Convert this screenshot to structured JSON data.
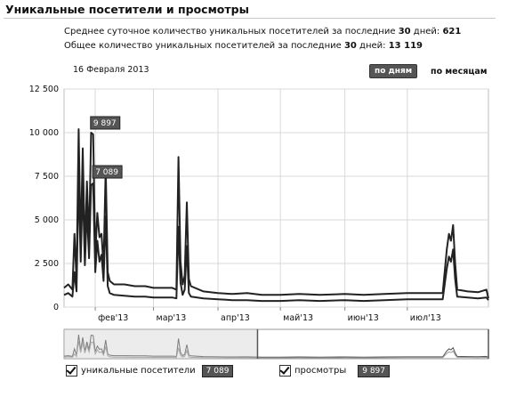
{
  "page": {
    "title": "Уникальные посетители и просмотры",
    "stats": [
      {
        "label": "Среднее суточное количество уникальных посетителей за последние",
        "days": "30",
        "suffix": " дней:",
        "value": "621"
      },
      {
        "label": "Общее количество уникальных посетителей за последние",
        "days": "30",
        "suffix": " дней:",
        "value": "13 119"
      }
    ],
    "date": "16 Февраля 2013",
    "buttons": {
      "by_days": "по дням",
      "by_months": "по месяцам"
    },
    "legend": [
      {
        "label": "уникальные посетители",
        "value": "7 089"
      },
      {
        "label": "просмотры",
        "value": "9 897"
      }
    ]
  },
  "chart_data": {
    "type": "line",
    "x_start": "2013-01-17",
    "x_end": "2013-08-09",
    "ylim": [
      0,
      12500
    ],
    "yticks": [
      0,
      2500,
      5000,
      7500,
      10000,
      12500
    ],
    "ytick_labels": [
      "0",
      "2 500",
      "5 000",
      "7 500",
      "10 000",
      "12 500"
    ],
    "xtick_labels": [
      "фев'13",
      "мар'13",
      "апр'13",
      "май'13",
      "июн'13",
      "июл'13"
    ],
    "xtick_dates": [
      "2013-02-01",
      "2013-03-01",
      "2013-04-01",
      "2013-05-01",
      "2013-06-01",
      "2013-07-01"
    ],
    "grid": true,
    "annotations": [
      {
        "date": "2013-02-06",
        "value": 9897,
        "label": "9 897",
        "series": "просмотры"
      },
      {
        "date": "2013-02-07",
        "value": 7089,
        "label": "7 089",
        "series": "уникальные посетители"
      }
    ],
    "series": [
      {
        "name": "просмотры",
        "color": "#222222",
        "points": [
          [
            "2013-01-17",
            1100
          ],
          [
            "2013-01-19",
            1300
          ],
          [
            "2013-01-21",
            1000
          ],
          [
            "2013-01-22",
            4200
          ],
          [
            "2013-01-23",
            1600
          ],
          [
            "2013-01-24",
            10200
          ],
          [
            "2013-01-25",
            3500
          ],
          [
            "2013-01-26",
            9100
          ],
          [
            "2013-01-27",
            3200
          ],
          [
            "2013-01-28",
            7200
          ],
          [
            "2013-01-29",
            3800
          ],
          [
            "2013-01-30",
            10000
          ],
          [
            "2013-01-31",
            9900
          ],
          [
            "2013-02-01",
            3000
          ],
          [
            "2013-02-02",
            5400
          ],
          [
            "2013-02-03",
            4000
          ],
          [
            "2013-02-04",
            4200
          ],
          [
            "2013-02-05",
            2300
          ],
          [
            "2013-02-06",
            8000
          ],
          [
            "2013-02-07",
            2000
          ],
          [
            "2013-02-08",
            1500
          ],
          [
            "2013-02-10",
            1300
          ],
          [
            "2013-02-15",
            1300
          ],
          [
            "2013-02-20",
            1200
          ],
          [
            "2013-02-25",
            1200
          ],
          [
            "2013-03-01",
            1100
          ],
          [
            "2013-03-05",
            1100
          ],
          [
            "2013-03-10",
            1100
          ],
          [
            "2013-03-12",
            1000
          ],
          [
            "2013-03-13",
            8600
          ],
          [
            "2013-03-14",
            2600
          ],
          [
            "2013-03-15",
            1300
          ],
          [
            "2013-03-16",
            1800
          ],
          [
            "2013-03-17",
            6000
          ],
          [
            "2013-03-18",
            1600
          ],
          [
            "2013-03-19",
            1200
          ],
          [
            "2013-03-25",
            900
          ],
          [
            "2013-04-01",
            800
          ],
          [
            "2013-04-08",
            750
          ],
          [
            "2013-04-15",
            800
          ],
          [
            "2013-04-22",
            700
          ],
          [
            "2013-05-01",
            700
          ],
          [
            "2013-05-10",
            750
          ],
          [
            "2013-05-20",
            700
          ],
          [
            "2013-06-01",
            750
          ],
          [
            "2013-06-10",
            700
          ],
          [
            "2013-06-20",
            750
          ],
          [
            "2013-07-01",
            800
          ],
          [
            "2013-07-10",
            800
          ],
          [
            "2013-07-18",
            800
          ],
          [
            "2013-07-20",
            3300
          ],
          [
            "2013-07-21",
            4200
          ],
          [
            "2013-07-22",
            3800
          ],
          [
            "2013-07-23",
            4700
          ],
          [
            "2013-07-24",
            2500
          ],
          [
            "2013-07-25",
            1000
          ],
          [
            "2013-07-30",
            900
          ],
          [
            "2013-08-04",
            850
          ],
          [
            "2013-08-08",
            1000
          ],
          [
            "2013-08-09",
            500
          ]
        ]
      },
      {
        "name": "уникальные посетители",
        "color": "#222222",
        "points": [
          [
            "2013-01-17",
            700
          ],
          [
            "2013-01-19",
            800
          ],
          [
            "2013-01-21",
            600
          ],
          [
            "2013-01-22",
            2000
          ],
          [
            "2013-01-23",
            900
          ],
          [
            "2013-01-24",
            7400
          ],
          [
            "2013-01-25",
            2600
          ],
          [
            "2013-01-26",
            7000
          ],
          [
            "2013-01-27",
            2400
          ],
          [
            "2013-01-28",
            5600
          ],
          [
            "2013-01-29",
            2800
          ],
          [
            "2013-01-30",
            7000
          ],
          [
            "2013-01-31",
            7089
          ],
          [
            "2013-02-01",
            2000
          ],
          [
            "2013-02-02",
            3800
          ],
          [
            "2013-02-03",
            2600
          ],
          [
            "2013-02-04",
            3000
          ],
          [
            "2013-02-05",
            1500
          ],
          [
            "2013-02-06",
            5200
          ],
          [
            "2013-02-07",
            1200
          ],
          [
            "2013-02-08",
            800
          ],
          [
            "2013-02-10",
            700
          ],
          [
            "2013-02-15",
            650
          ],
          [
            "2013-02-20",
            600
          ],
          [
            "2013-02-25",
            600
          ],
          [
            "2013-03-01",
            550
          ],
          [
            "2013-03-05",
            550
          ],
          [
            "2013-03-10",
            550
          ],
          [
            "2013-03-12",
            500
          ],
          [
            "2013-03-13",
            4600
          ],
          [
            "2013-03-14",
            1400
          ],
          [
            "2013-03-15",
            700
          ],
          [
            "2013-03-16",
            1000
          ],
          [
            "2013-03-17",
            3500
          ],
          [
            "2013-03-18",
            800
          ],
          [
            "2013-03-19",
            600
          ],
          [
            "2013-03-25",
            500
          ],
          [
            "2013-04-01",
            450
          ],
          [
            "2013-04-08",
            400
          ],
          [
            "2013-04-15",
            400
          ],
          [
            "2013-04-22",
            350
          ],
          [
            "2013-05-01",
            350
          ],
          [
            "2013-05-10",
            400
          ],
          [
            "2013-05-20",
            350
          ],
          [
            "2013-06-01",
            400
          ],
          [
            "2013-06-10",
            350
          ],
          [
            "2013-06-20",
            400
          ],
          [
            "2013-07-01",
            450
          ],
          [
            "2013-07-10",
            450
          ],
          [
            "2013-07-18",
            450
          ],
          [
            "2013-07-20",
            2200
          ],
          [
            "2013-07-21",
            2900
          ],
          [
            "2013-07-22",
            2600
          ],
          [
            "2013-07-23",
            3300
          ],
          [
            "2013-07-24",
            1600
          ],
          [
            "2013-07-25",
            600
          ],
          [
            "2013-07-30",
            550
          ],
          [
            "2013-08-04",
            500
          ],
          [
            "2013-08-08",
            550
          ],
          [
            "2013-08-09",
            400
          ]
        ]
      }
    ]
  }
}
